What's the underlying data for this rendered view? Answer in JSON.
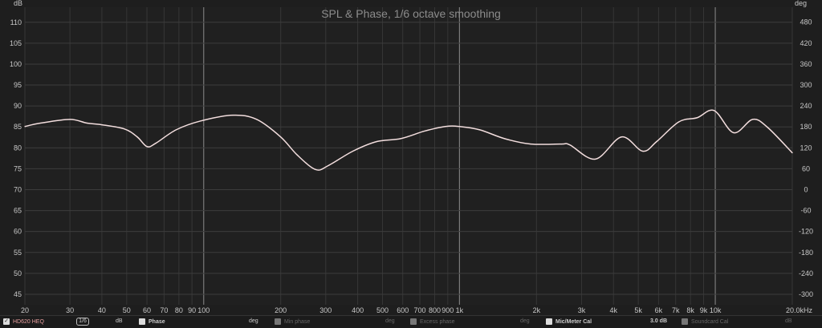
{
  "chart_data": {
    "type": "line",
    "title": "SPL & Phase, 1/6 octave smoothing",
    "xlabel_unit": "kHz",
    "y_left_unit": "dB",
    "y_right_unit": "deg",
    "x_scale": "log",
    "xlim": [
      20,
      20000
    ],
    "ylim": [
      42.5,
      113.6
    ],
    "y_right_lim": [
      -330,
      523
    ],
    "grid": true,
    "x_ticks": [
      "20",
      "30",
      "40",
      "50",
      "60",
      "70",
      "80",
      "90",
      "100",
      "200",
      "300",
      "400",
      "500",
      "600",
      "700",
      "800",
      "900",
      "1k",
      "2k",
      "3k",
      "4k",
      "5k",
      "6k",
      "7k",
      "8k",
      "9k",
      "10k",
      "20.0kHz"
    ],
    "x_tick_values": [
      20,
      30,
      40,
      50,
      60,
      70,
      80,
      90,
      100,
      200,
      300,
      400,
      500,
      600,
      700,
      800,
      900,
      1000,
      2000,
      3000,
      4000,
      5000,
      6000,
      7000,
      8000,
      9000,
      10000,
      20000
    ],
    "y_ticks": [
      110,
      105,
      100,
      95,
      90,
      85,
      80,
      75,
      70,
      65,
      60,
      55,
      50,
      45
    ],
    "y_right_ticks": [
      480,
      420,
      360,
      300,
      240,
      180,
      120,
      60,
      0,
      -60,
      -120,
      -180,
      -240,
      -300
    ],
    "series": [
      {
        "name": "HD620 HEQ",
        "color": "#f3dede",
        "x": [
          20,
          23,
          30,
          35,
          40,
          49,
          55,
          60,
          65,
          78,
          97,
          130,
          161,
          200,
          232,
          274,
          308,
          383,
          475,
          589,
          730,
          880,
          1000,
          1200,
          1500,
          1900,
          2500,
          2700,
          3400,
          4300,
          5200,
          5900,
          7200,
          8500,
          9900,
          11800,
          14000,
          16000,
          20000
        ],
        "y": [
          85.1,
          85.9,
          86.8,
          85.9,
          85.5,
          84.5,
          82.6,
          80.3,
          81.1,
          84.3,
          86.4,
          87.8,
          86.8,
          82.6,
          78.3,
          74.8,
          75.8,
          79.2,
          81.5,
          82.2,
          84.0,
          85.1,
          85.1,
          84.3,
          82.2,
          80.9,
          80.9,
          80.7,
          77.3,
          82.6,
          79.2,
          81.5,
          86.2,
          87.2,
          88.9,
          83.6,
          86.8,
          84.9,
          78.8
        ]
      }
    ]
  },
  "legend": {
    "trace_name": "HD620 HEQ",
    "smoothing_label": "1/6",
    "trace_unit": "dB",
    "phase_label": "Phase",
    "phase_unit": "deg",
    "min_phase_label": "Min phase",
    "min_phase_unit": "deg",
    "excess_phase_label": "Excess phase",
    "excess_phase_unit": "deg",
    "mic_cal_label": "Mic/Meter Cal",
    "mic_cal_value": "3.0 dB",
    "soundcard_cal_label": "Soundcard Cal",
    "soundcard_cal_unit": "dB"
  }
}
